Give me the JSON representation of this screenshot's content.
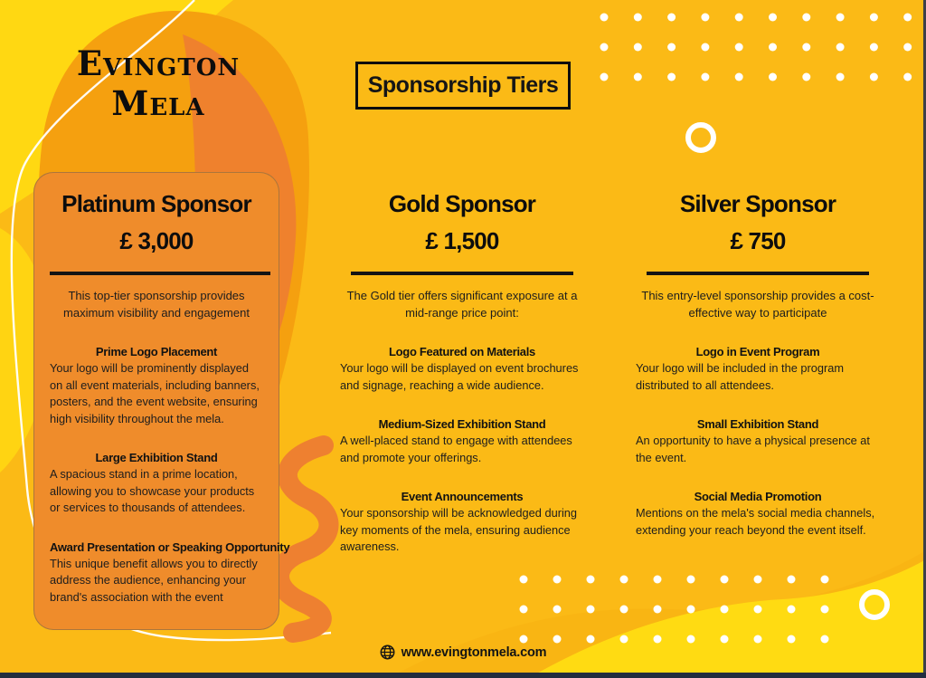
{
  "brand": {
    "name_line1": "Evington",
    "name_line2": "Mela"
  },
  "header": {
    "badge_label": "Sponsorship Tiers"
  },
  "tiers": [
    {
      "name": "Platinum Sponsor",
      "price": "£ 3,000",
      "intro": "This top-tier sponsorship provides maximum visibility and engagement",
      "benefits": [
        {
          "title": "Prime Logo Placement",
          "desc": "Your logo will be prominently displayed on all event materials, including banners, posters, and the event website, ensuring high visibility throughout the mela."
        },
        {
          "title": "Large Exhibition Stand",
          "desc": "A spacious stand in a prime location, allowing you to showcase your products or services to thousands of attendees."
        },
        {
          "title": "Award Presentation or Speaking Opportunity",
          "desc": "This unique benefit allows you to directly address the audience, enhancing your brand's association with the event"
        }
      ]
    },
    {
      "name": "Gold Sponsor",
      "price": "£ 1,500",
      "intro": "The Gold tier offers significant exposure at a mid-range price point:",
      "benefits": [
        {
          "title": "Logo Featured on Materials",
          "desc": "Your logo will be displayed on event brochures and signage, reaching a wide audience."
        },
        {
          "title": "Medium-Sized Exhibition Stand",
          "desc": "A well-placed stand to engage with attendees and promote your offerings."
        },
        {
          "title": "Event Announcements",
          "desc": "Your sponsorship will be acknowledged during key moments of the mela, ensuring audience awareness."
        }
      ]
    },
    {
      "name": "Silver Sponsor",
      "price": "£ 750",
      "intro": "This entry-level sponsorship provides a cost-effective way to participate",
      "benefits": [
        {
          "title": "Logo in Event Program",
          "desc": "Your logo will be included in the program distributed to all attendees."
        },
        {
          "title": "Small Exhibition Stand",
          "desc": "An opportunity to have a physical presence at the event."
        },
        {
          "title": "Social Media Promotion",
          "desc": "Mentions on the mela's social media channels, extending your reach beyond the event itself."
        }
      ]
    }
  ],
  "footer": {
    "website": "www.evingtonmela.com",
    "icon": "globe-icon"
  },
  "colors": {
    "background_gold": "#fbba16",
    "accent_yellow": "#ffd812",
    "orange_blob": "#f5a00f",
    "orange_dark": "#ee7d31",
    "squiggle_orange": "#ee8030",
    "card_orange": "#ef8c2b",
    "text_ink": "#161616",
    "bottom_strip_navy": "#232d3f",
    "dots_white": "#ffffff"
  }
}
